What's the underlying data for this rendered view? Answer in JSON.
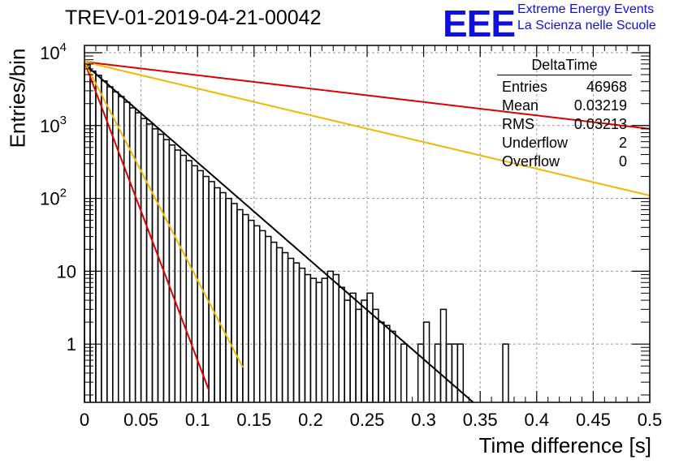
{
  "header": {
    "title": "TREV-01-2019-04-21-00042",
    "logo_text": "EEE",
    "logo_line1": "Extreme Energy Events",
    "logo_line2": "La Scienza nelle Scuole"
  },
  "stats_box": {
    "name": "DeltaTime",
    "rows": [
      {
        "label": "Entries",
        "value": "46968"
      },
      {
        "label": "Mean",
        "value": "0.03219"
      },
      {
        "label": "RMS",
        "value": "0.03213"
      },
      {
        "label": "Underflow",
        "value": "2"
      },
      {
        "label": "Overflow",
        "value": "0"
      }
    ]
  },
  "chart_data": {
    "type": "histogram",
    "xlabel": "Time difference [s]",
    "ylabel": "Entries/bin",
    "xlim": [
      0,
      0.5
    ],
    "ylim_log10": [
      -0.8,
      4.1
    ],
    "yscale": "log",
    "grid": true,
    "x_ticks": [
      "0",
      "0.05",
      "0.1",
      "0.15",
      "0.2",
      "0.25",
      "0.3",
      "0.35",
      "0.4",
      "0.45",
      "0.5"
    ],
    "y_ticks": [
      {
        "value": 1,
        "label": "1"
      },
      {
        "value": 10,
        "label": "10"
      },
      {
        "value": 100,
        "label": "10",
        "sup": "2"
      },
      {
        "value": 1000,
        "label": "10",
        "sup": "3"
      },
      {
        "value": 10000,
        "label": "10",
        "sup": "4"
      }
    ],
    "histogram": {
      "bin_width": 0.005,
      "counts": [
        6800,
        5600,
        4900,
        4100,
        3400,
        2900,
        2500,
        2100,
        1750,
        1500,
        1250,
        1050,
        900,
        760,
        640,
        540,
        460,
        390,
        330,
        280,
        240,
        200,
        170,
        140,
        120,
        100,
        85,
        70,
        60,
        50,
        42,
        36,
        30,
        25,
        21,
        18,
        15,
        13,
        11,
        9,
        8,
        7,
        8,
        10,
        9,
        6,
        4,
        5,
        3,
        4,
        5,
        3,
        2,
        1.8,
        1.5,
        0,
        1,
        0,
        0,
        1,
        2,
        0,
        1,
        3,
        1,
        1,
        1,
        0,
        0,
        0,
        0,
        0,
        0,
        0,
        1,
        0,
        0,
        0,
        0,
        0,
        0,
        0,
        0,
        0,
        0,
        0,
        0,
        0,
        0,
        0,
        0,
        0,
        0,
        0,
        0,
        0,
        0,
        0,
        0,
        0
      ]
    },
    "fits": [
      {
        "color": "#000000",
        "A": 7000,
        "tau": 0.03215,
        "x_end": 0.35
      },
      {
        "color": "#dd0000",
        "A": 7500,
        "tau": 0.0106,
        "x_end": 0.11
      },
      {
        "color": "#f0b800",
        "A": 7500,
        "tau": 0.0145,
        "x_end": 0.14
      },
      {
        "color": "#dd0000",
        "A": 7500,
        "tau": 0.236,
        "x_end": 0.5
      },
      {
        "color": "#f0b800",
        "A": 7500,
        "tau": 0.1183,
        "x_end": 0.5
      }
    ]
  }
}
